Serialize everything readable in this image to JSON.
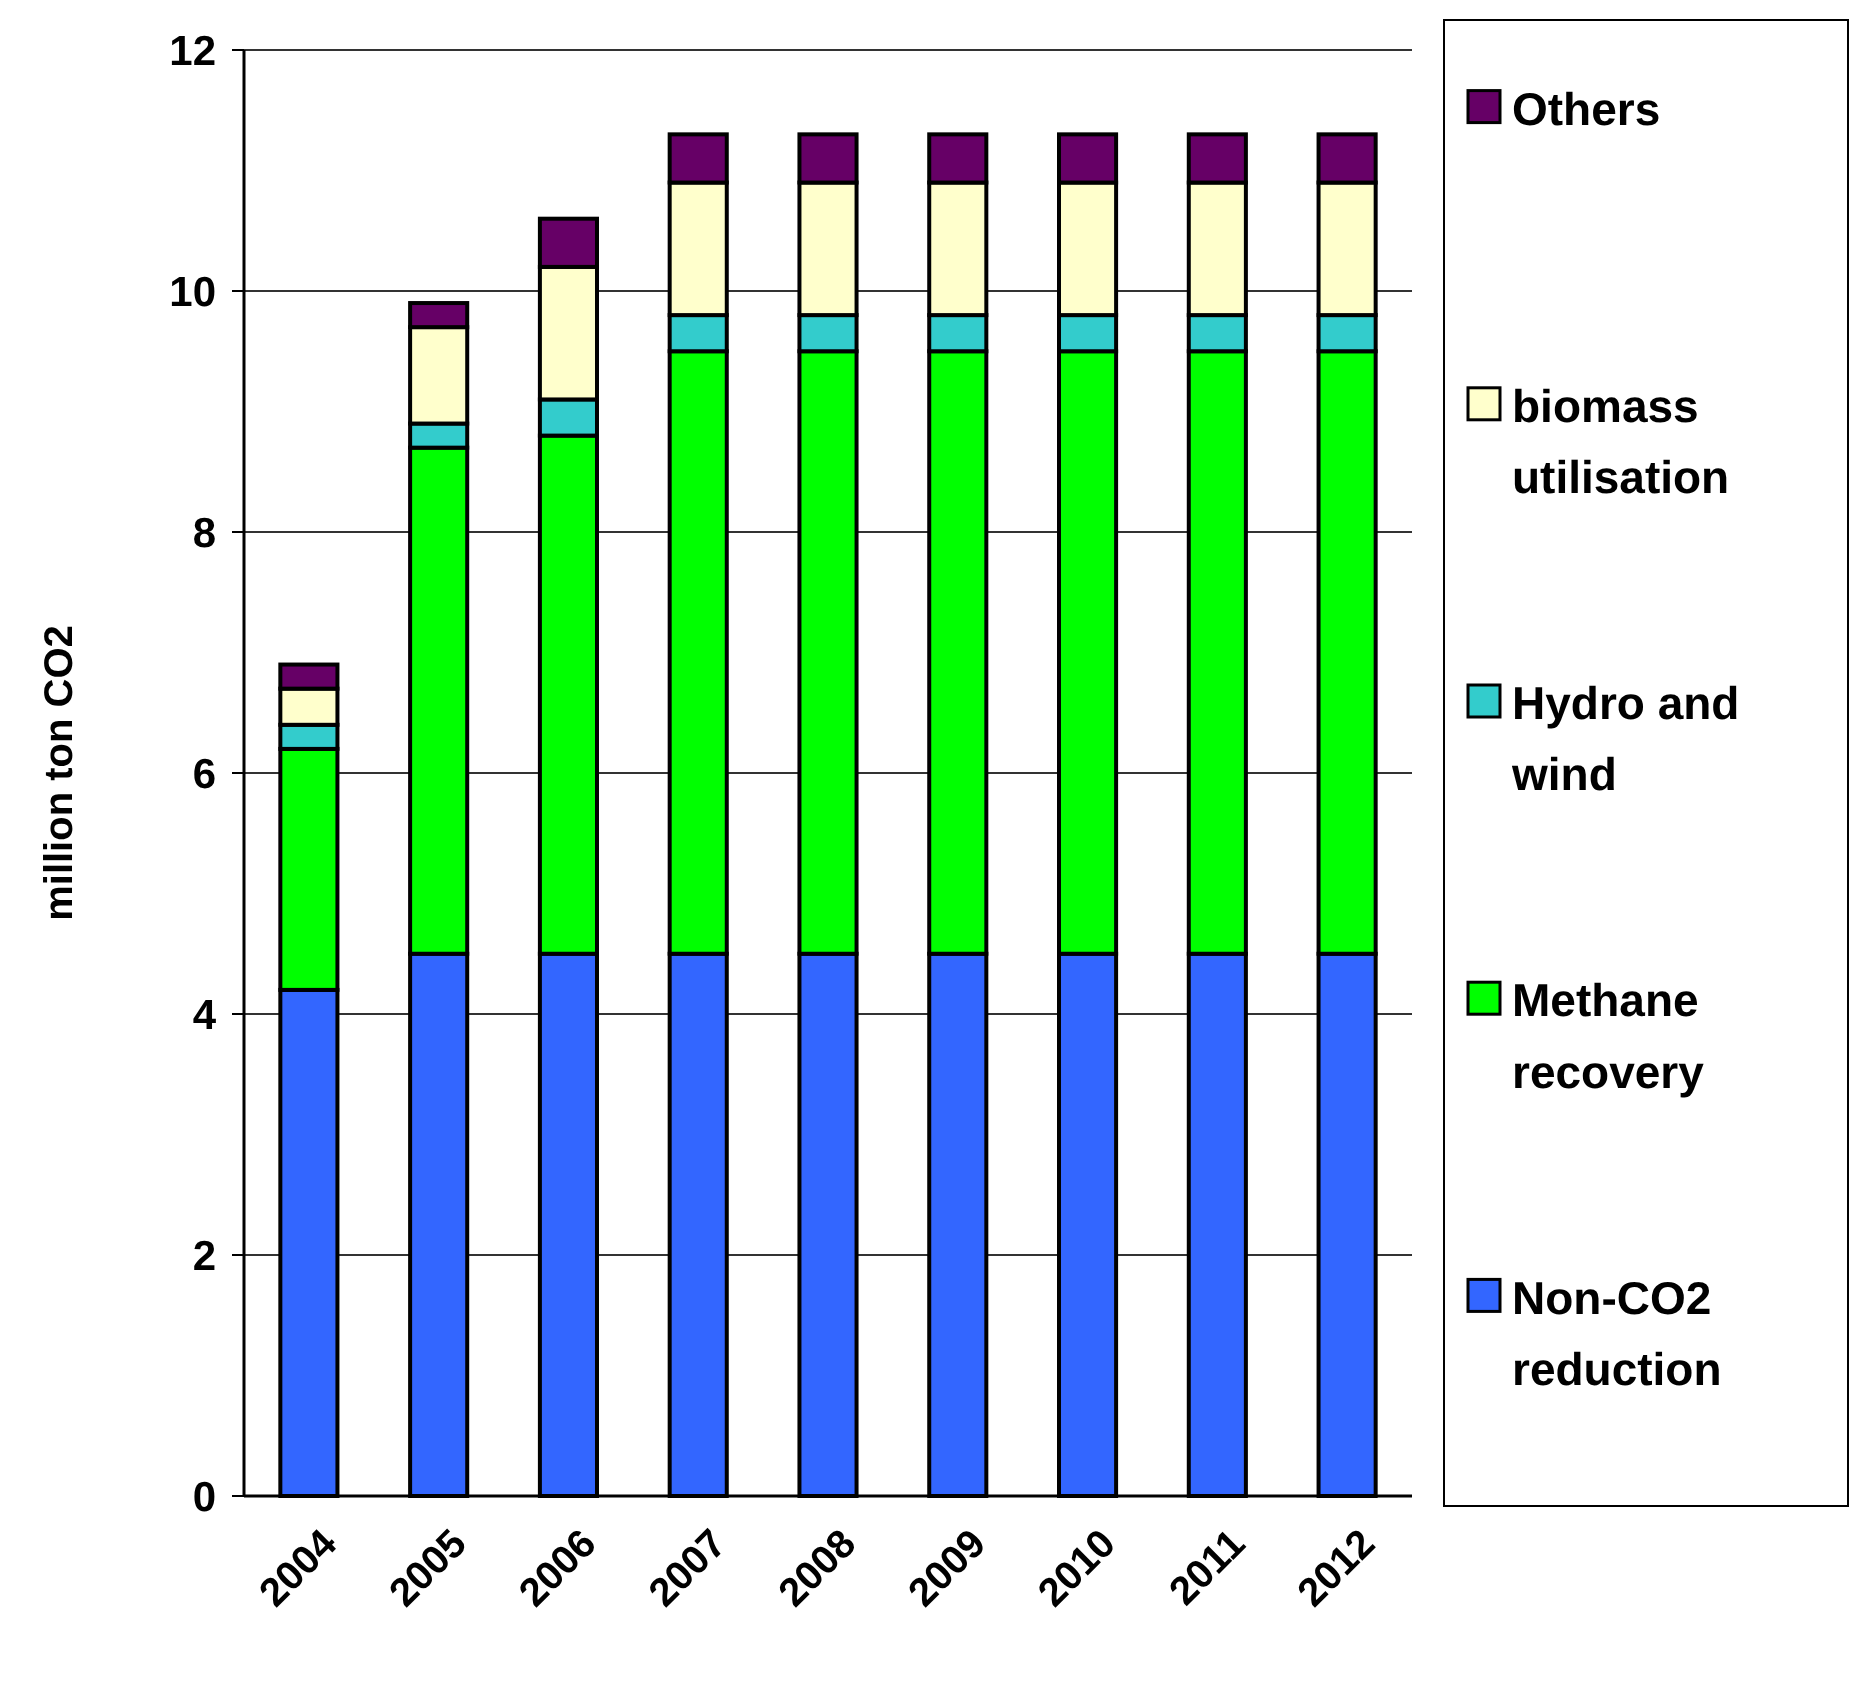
{
  "chart_data": {
    "type": "bar",
    "stacked": true,
    "ylabel": "million ton CO2",
    "categories": [
      "2004",
      "2005",
      "2006",
      "2007",
      "2008",
      "2009",
      "2010",
      "2011",
      "2012"
    ],
    "series": [
      {
        "name": "Non-CO2 reduction",
        "color": "#3366ff",
        "values": [
          4.2,
          4.5,
          4.5,
          4.5,
          4.5,
          4.5,
          4.5,
          4.5,
          4.5
        ]
      },
      {
        "name": "Methane recovery",
        "color": "#00ff00",
        "values": [
          2.0,
          4.2,
          4.3,
          5.0,
          5.0,
          5.0,
          5.0,
          5.0,
          5.0
        ]
      },
      {
        "name": "Hydro and wind",
        "color": "#33cccc",
        "values": [
          0.2,
          0.2,
          0.3,
          0.3,
          0.3,
          0.3,
          0.3,
          0.3,
          0.3
        ]
      },
      {
        "name": "biomass utilisation",
        "color": "#ffffcc",
        "values": [
          0.3,
          0.8,
          1.1,
          1.1,
          1.1,
          1.1,
          1.1,
          1.1,
          1.1
        ]
      },
      {
        "name": "Others",
        "color": "#660066",
        "values": [
          0.2,
          0.2,
          0.4,
          0.4,
          0.4,
          0.4,
          0.4,
          0.4,
          0.4
        ]
      }
    ],
    "ylim": [
      0,
      12
    ],
    "yticks": [
      0,
      2,
      4,
      6,
      8,
      10,
      12
    ],
    "grid": "y",
    "legend": "right"
  }
}
